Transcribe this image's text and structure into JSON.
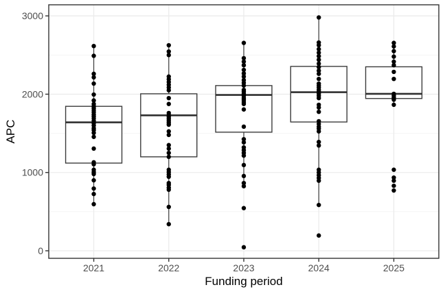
{
  "figure": {
    "x_axis_title": "Funding period",
    "y_axis_title": "APC"
  },
  "colors": {
    "background": "#ffffff",
    "panel_background": "#ffffff",
    "panel_border": "#333333",
    "grid_major": "#ebebeb",
    "grid_minor": "#f2f2f2",
    "box_stroke": "#3b3b3b",
    "median_stroke": "#2f2f2f",
    "whisker_stroke": "#3b3b3b",
    "point_fill": "#000000",
    "tick_mark": "#333333",
    "tick_label": "#4d4d4d",
    "axis_title": "#000000"
  },
  "chart_data": {
    "type": "boxplot",
    "title": "",
    "xlabel": "Funding period",
    "ylabel": "APC",
    "categories": [
      "2021",
      "2022",
      "2023",
      "2024",
      "2025"
    ],
    "y_tick_labels": [
      "0",
      "1000",
      "2000",
      "3000"
    ],
    "y_ticks": [
      0,
      1000,
      2000,
      3000
    ],
    "y_minor_ticks": [
      500,
      1500,
      2500
    ],
    "ylim": [
      0,
      3000
    ],
    "legend": "none",
    "grid": {
      "horizontal_major": true,
      "horizontal_minor": true,
      "vertical_major_at_categories": true
    },
    "box_width_fraction": 0.75,
    "boxes": [
      {
        "category": "2021",
        "whisker_low": 595,
        "q1": 1120,
        "median": 1640,
        "q3": 1845,
        "whisker_high": 2615,
        "outliers": []
      },
      {
        "category": "2022",
        "whisker_low": 340,
        "q1": 1200,
        "median": 1730,
        "q3": 2005,
        "whisker_high": 2625,
        "outliers": []
      },
      {
        "category": "2023",
        "whisker_low": 815,
        "q1": 1515,
        "median": 1990,
        "q3": 2110,
        "whisker_high": 2655,
        "outliers": [
          545,
          45
        ]
      },
      {
        "category": "2024",
        "whisker_low": 585,
        "q1": 1645,
        "median": 2025,
        "q3": 2355,
        "whisker_high": 2980,
        "outliers": [
          195
        ]
      },
      {
        "category": "2025",
        "whisker_low": 1865,
        "q1": 1945,
        "median": 2005,
        "q3": 2350,
        "whisker_high": 2655,
        "outliers": [
          1035,
          935,
          895,
          830,
          770
        ]
      }
    ],
    "points": {
      "2021": [
        2615,
        2490,
        2260,
        2215,
        2135,
        1995,
        1920,
        1875,
        1845,
        1820,
        1795,
        1770,
        1740,
        1715,
        1690,
        1660,
        1630,
        1600,
        1565,
        1540,
        1505,
        1455,
        1305,
        1130,
        1105,
        1035,
        1005,
        980,
        900,
        795,
        725,
        595
      ],
      "2022": [
        2625,
        2545,
        2500,
        2225,
        2190,
        2155,
        2120,
        2085,
        2050,
        1950,
        1875,
        1760,
        1735,
        1710,
        1685,
        1660,
        1635,
        1610,
        1525,
        1480,
        1350,
        1305,
        1250,
        1200,
        1035,
        1005,
        975,
        945,
        865,
        840,
        805,
        780,
        560,
        340
      ],
      "2023": [
        2655,
        2460,
        2415,
        2370,
        2310,
        2265,
        2225,
        2180,
        2145,
        2110,
        2055,
        2030,
        2005,
        1980,
        1950,
        1925,
        1900,
        1875,
        1805,
        1585,
        1425,
        1385,
        1320,
        1285,
        1250,
        1215,
        1095,
        955,
        865,
        825,
        545,
        45
      ],
      "2024": [
        2980,
        2660,
        2625,
        2575,
        2530,
        2485,
        2440,
        2390,
        2345,
        2300,
        2260,
        2195,
        2135,
        2110,
        2085,
        2055,
        2030,
        2005,
        1980,
        1950,
        1865,
        1830,
        1775,
        1655,
        1620,
        1585,
        1560,
        1525,
        1390,
        1345,
        1035,
        1000,
        965,
        930,
        895,
        585,
        195
      ],
      "2025": [
        2655,
        2610,
        2550,
        2480,
        2415,
        2370,
        2285,
        2195,
        2005,
        1980,
        1955,
        1930,
        1865,
        1035,
        935,
        895,
        830,
        770
      ]
    }
  }
}
